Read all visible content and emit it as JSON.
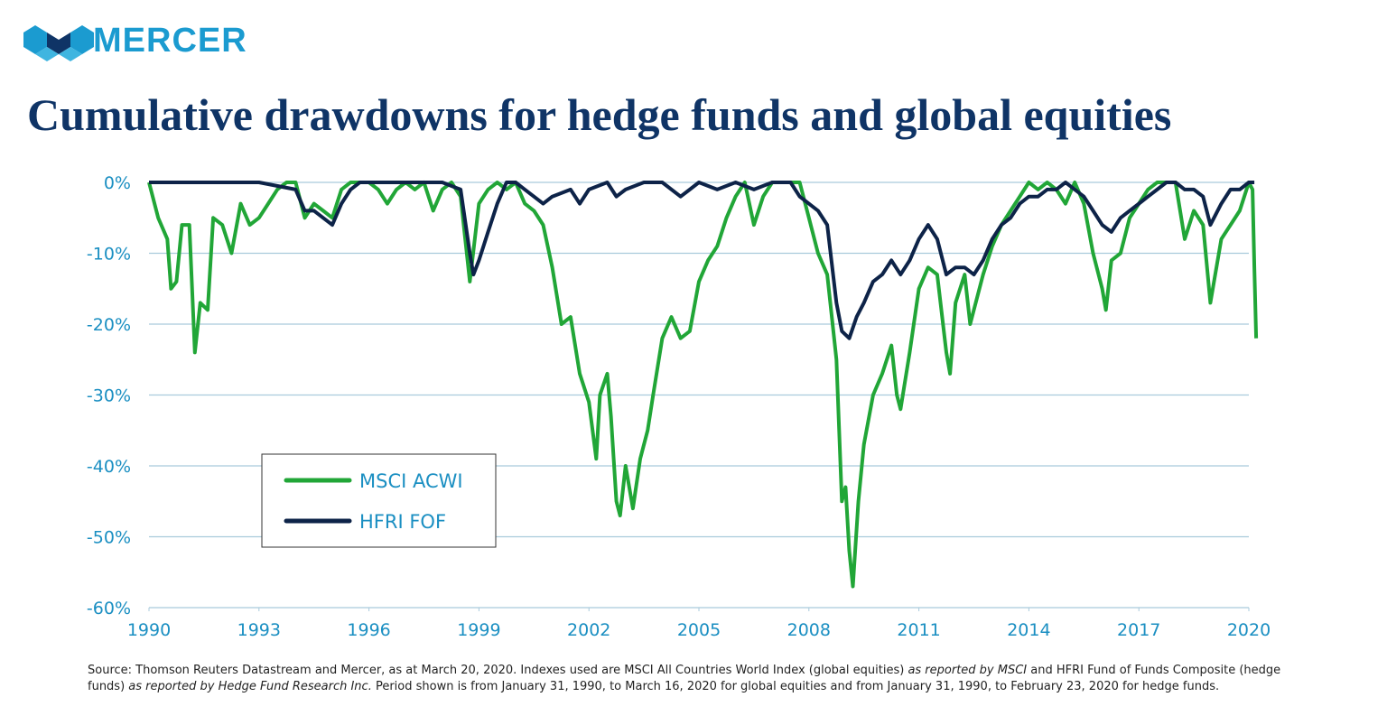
{
  "logo": "MERCER",
  "chart_data": {
    "type": "line",
    "title": "Cumulative drawdowns for hedge funds and global equities",
    "xlim": [
      1990,
      2020
    ],
    "xticks": [
      1990,
      1993,
      1996,
      1999,
      2002,
      2005,
      2008,
      2011,
      2014,
      2017,
      2020
    ],
    "ylim": [
      -60,
      0
    ],
    "yticks": [
      {
        "value": 0,
        "label": "0%"
      },
      {
        "value": -10,
        "label": "-10%"
      },
      {
        "value": -20,
        "label": "-20%"
      },
      {
        "value": -30,
        "label": "-30%"
      },
      {
        "value": -40,
        "label": "-40%"
      },
      {
        "value": -50,
        "label": "-50%"
      },
      {
        "value": -60,
        "label": "-60%"
      }
    ],
    "grid": true,
    "legend": "lower left",
    "series": [
      {
        "name": "MSCI ACWI",
        "color": "#21a637",
        "x": [
          1990,
          1990.25,
          1990.5,
          1990.6,
          1990.75,
          1990.9,
          1991.1,
          1991.25,
          1991.4,
          1991.6,
          1991.75,
          1992,
          1992.25,
          1992.5,
          1992.75,
          1993,
          1993.25,
          1993.5,
          1993.75,
          1994,
          1994.25,
          1994.5,
          1994.75,
          1995,
          1995.25,
          1995.5,
          1995.75,
          1996,
          1996.25,
          1996.5,
          1996.75,
          1997,
          1997.25,
          1997.5,
          1997.75,
          1998,
          1998.25,
          1998.5,
          1998.75,
          1999,
          1999.25,
          1999.5,
          1999.75,
          2000,
          2000.25,
          2000.5,
          2000.75,
          2001,
          2001.25,
          2001.5,
          2001.75,
          2002,
          2002.2,
          2002.3,
          2002.5,
          2002.6,
          2002.75,
          2002.85,
          2003,
          2003.2,
          2003.4,
          2003.6,
          2003.75,
          2004,
          2004.25,
          2004.5,
          2004.75,
          2005,
          2005.25,
          2005.5,
          2005.75,
          2006,
          2006.25,
          2006.5,
          2006.75,
          2007,
          2007.25,
          2007.5,
          2007.75,
          2008,
          2008.25,
          2008.5,
          2008.75,
          2008.9,
          2009,
          2009.1,
          2009.2,
          2009.35,
          2009.5,
          2009.75,
          2010,
          2010.25,
          2010.4,
          2010.5,
          2010.75,
          2011,
          2011.25,
          2011.5,
          2011.75,
          2011.85,
          2012,
          2012.25,
          2012.4,
          2012.5,
          2012.75,
          2013,
          2013.25,
          2013.5,
          2013.75,
          2014,
          2014.25,
          2014.5,
          2014.75,
          2015,
          2015.25,
          2015.5,
          2015.75,
          2016,
          2016.1,
          2016.25,
          2016.5,
          2016.75,
          2017,
          2017.25,
          2017.5,
          2017.75,
          2018,
          2018.25,
          2018.5,
          2018.75,
          2018.95,
          2019.25,
          2019.5,
          2019.75,
          2020,
          2020.1,
          2020.15,
          2020.2
        ],
        "values": [
          0,
          -5,
          -8,
          -15,
          -14,
          -6,
          -6,
          -24,
          -17,
          -18,
          -5,
          -6,
          -10,
          -3,
          -6,
          -5,
          -3,
          -1,
          0,
          0,
          -5,
          -3,
          -4,
          -5,
          -1,
          0,
          0,
          0,
          -1,
          -3,
          -1,
          0,
          -1,
          0,
          -4,
          -1,
          0,
          -2,
          -14,
          -3,
          -1,
          0,
          -1,
          0,
          -3,
          -4,
          -6,
          -12,
          -20,
          -19,
          -27,
          -31,
          -39,
          -30,
          -27,
          -33,
          -45,
          -47,
          -40,
          -46,
          -39,
          -35,
          -30,
          -22,
          -19,
          -22,
          -21,
          -14,
          -11,
          -9,
          -5,
          -2,
          0,
          -6,
          -2,
          0,
          0,
          0,
          0,
          -5,
          -10,
          -13,
          -25,
          -45,
          -43,
          -52,
          -57,
          -45,
          -37,
          -30,
          -27,
          -23,
          -30,
          -32,
          -24,
          -15,
          -12,
          -13,
          -24,
          -27,
          -17,
          -13,
          -20,
          -18,
          -13,
          -9,
          -6,
          -4,
          -2,
          0,
          -1,
          0,
          -1,
          -3,
          0,
          -3,
          -10,
          -15,
          -18,
          -11,
          -10,
          -5,
          -3,
          -1,
          0,
          0,
          0,
          -8,
          -4,
          -6,
          -17,
          -8,
          -6,
          -4,
          0,
          -1,
          -12,
          -22
        ]
      },
      {
        "name": "HFRI FOF",
        "color": "#0d2348",
        "x": [
          1990,
          1991,
          1992,
          1993,
          1994,
          1994.25,
          1994.5,
          1994.75,
          1995,
          1995.25,
          1995.5,
          1995.75,
          1996.5,
          1997,
          1998,
          1998.5,
          1998.75,
          1998.85,
          1999,
          1999.25,
          1999.5,
          1999.75,
          2000,
          2000.25,
          2000.5,
          2000.75,
          2001,
          2001.5,
          2001.75,
          2002,
          2002.5,
          2002.75,
          2003,
          2003.5,
          2004,
          2004.5,
          2004.75,
          2005,
          2005.5,
          2006,
          2006.5,
          2007,
          2007.5,
          2007.75,
          2008,
          2008.25,
          2008.5,
          2008.75,
          2008.9,
          2009.1,
          2009.3,
          2009.5,
          2009.75,
          2010,
          2010.25,
          2010.5,
          2010.75,
          2011,
          2011.25,
          2011.5,
          2011.75,
          2012,
          2012.25,
          2012.5,
          2012.75,
          2013,
          2013.25,
          2013.5,
          2013.75,
          2014,
          2014.25,
          2014.5,
          2014.75,
          2015,
          2015.25,
          2015.5,
          2015.75,
          2016,
          2016.25,
          2016.5,
          2016.75,
          2017,
          2017.25,
          2017.5,
          2017.75,
          2018,
          2018.25,
          2018.5,
          2018.75,
          2018.95,
          2019.25,
          2019.5,
          2019.75,
          2020,
          2020.15
        ],
        "values": [
          0,
          0,
          0,
          0,
          -1,
          -4,
          -4,
          -5,
          -6,
          -3,
          -1,
          0,
          0,
          0,
          0,
          -1,
          -10,
          -13,
          -11,
          -7,
          -3,
          0,
          0,
          -1,
          -2,
          -3,
          -2,
          -1,
          -3,
          -1,
          0,
          -2,
          -1,
          0,
          0,
          -2,
          -1,
          0,
          -1,
          0,
          -1,
          0,
          0,
          -2,
          -3,
          -4,
          -6,
          -17,
          -21,
          -22,
          -19,
          -17,
          -14,
          -13,
          -11,
          -13,
          -11,
          -8,
          -6,
          -8,
          -13,
          -12,
          -12,
          -13,
          -11,
          -8,
          -6,
          -5,
          -3,
          -2,
          -2,
          -1,
          -1,
          0,
          -1,
          -2,
          -4,
          -6,
          -7,
          -5,
          -4,
          -3,
          -2,
          -1,
          0,
          0,
          -1,
          -1,
          -2,
          -6,
          -3,
          -1,
          -1,
          0,
          0
        ]
      }
    ],
    "source": [
      {
        "text": "Source: Thomson Reuters Datastream and Mercer, as at March 20, 2020. Indexes used are MSCI All Countries World Index (global equities) ",
        "italic": false
      },
      {
        "text": "as reported by MSCI",
        "italic": true
      },
      {
        "text": " and HFRI Fund of Funds Composite (hedge funds) ",
        "italic": false
      },
      {
        "text": "as reported by Hedge Fund Research Inc.",
        "italic": true
      },
      {
        "text": " Period shown is from January 31, 1990, to March 16, 2020 for global equities and from January 31, 1990, to February 23, 2020 for hedge funds.",
        "italic": false
      }
    ]
  }
}
